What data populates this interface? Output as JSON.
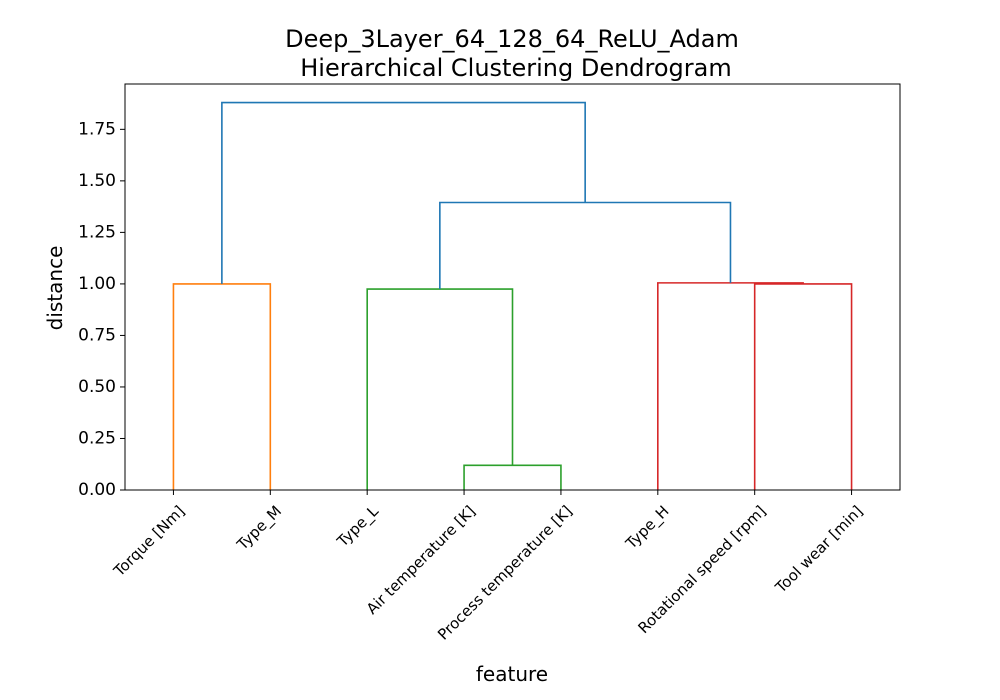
{
  "chart_data": {
    "type": "dendrogram",
    "title": "Deep_3Layer_64_128_64_ReLU_Adam",
    "subtitle": "Hierarchical Clustering Dendrogram",
    "xlabel": "feature",
    "ylabel": "distance",
    "ylim": [
      0,
      1.97
    ],
    "yticks": [
      "0.00",
      "0.25",
      "0.50",
      "0.75",
      "1.00",
      "1.25",
      "1.50",
      "1.75"
    ],
    "grid": false,
    "leaves": [
      "Torque [Nm]",
      "Type_M",
      "Type_L",
      "Air temperature [K]",
      "Process temperature [K]",
      "Type_H",
      "Rotational speed [rpm]",
      "Tool wear [min]"
    ],
    "links": [
      {
        "left_x": 3.5,
        "right_x": 4.5,
        "height": 0.12,
        "left_h": 0,
        "right_h": 0,
        "color": "#2ca02c"
      },
      {
        "left_x": 0.5,
        "right_x": 1.5,
        "height": 1.0,
        "left_h": 0,
        "right_h": 0,
        "color": "#ff7f0e"
      },
      {
        "left_x": 2.5,
        "right_x": 4.0,
        "height": 0.975,
        "left_h": 0,
        "right_h": 0.12,
        "color": "#2ca02c"
      },
      {
        "left_x": 6.5,
        "right_x": 7.5,
        "height": 1.0,
        "left_h": 0,
        "right_h": 0,
        "color": "#d62728"
      },
      {
        "left_x": 5.5,
        "right_x": 7.0,
        "height": 1.005,
        "left_h": 0,
        "right_h": 1.0,
        "color": "#d62728"
      },
      {
        "left_x": 3.25,
        "right_x": 6.25,
        "height": 1.395,
        "left_h": 0.975,
        "right_h": 1.005,
        "color": "#1f77b4"
      },
      {
        "left_x": 1.0,
        "right_x": 4.75,
        "height": 1.88,
        "left_h": 1.0,
        "right_h": 1.395,
        "color": "#1f77b4"
      }
    ]
  }
}
